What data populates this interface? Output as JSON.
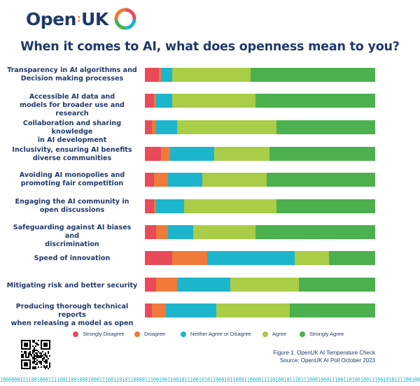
{
  "brand": {
    "name_part1": "Open",
    "name_part2": "UK",
    "dot": ":"
  },
  "chart_data": {
    "type": "bar",
    "orientation": "horizontal",
    "stacked": true,
    "title": "When it comes to AI, what does openness mean to you?",
    "xlim": [
      0,
      100
    ],
    "unit": "percent",
    "legend_position": "bottom",
    "categories": [
      [
        "Transparency in AI algorithms and",
        "Decision making processes"
      ],
      [
        "Accessible AI data and",
        "models for broader use and research"
      ],
      [
        "Collaboration and sharing knowledge",
        "in AI development"
      ],
      [
        "Inclusivity, ensuring AI benefits",
        "diverse communities"
      ],
      [
        "Avoiding AI monopolies and",
        "promoting fair competition"
      ],
      [
        "Engaging the AI community in",
        "open discussions"
      ],
      [
        "Safeguarding against AI biases and",
        "discrimination"
      ],
      [
        "Speed of innovation"
      ],
      [
        "Mitigating risk and better security"
      ],
      [
        "Producing thorough technical reports",
        "when releasing a model as open"
      ]
    ],
    "series": [
      {
        "name": "Strongly Disagree",
        "color": "#e94a59",
        "values": [
          6,
          4,
          3,
          7,
          4,
          4,
          5,
          12,
          5,
          3
        ]
      },
      {
        "name": "Disagree",
        "color": "#f07a3a",
        "values": [
          1,
          1,
          2,
          4,
          6,
          1,
          5,
          15,
          9,
          6
        ]
      },
      {
        "name": "Neither Agree or Disagree",
        "color": "#1db5cc",
        "values": [
          5,
          7,
          9,
          19,
          15,
          12,
          11,
          38,
          23,
          22
        ]
      },
      {
        "name": "Agree",
        "color": "#a9cd47",
        "values": [
          34,
          36,
          43,
          24,
          28,
          40,
          27,
          15,
          30,
          32
        ]
      },
      {
        "name": "Strongly Agree",
        "color": "#4cb04f",
        "values": [
          54,
          52,
          43,
          46,
          47,
          43,
          52,
          20,
          33,
          37
        ]
      }
    ]
  },
  "caption": {
    "line1": "Figure 1. OpenUK AI Temperature Check",
    "line2": "Source: OpenUK AI Poll October 2023"
  },
  "footer_binary": "1000000111100100011110011001000100011100110101100001110010011001011100101011000101100011000011110100101110111000100011100110100100111001010111100100"
}
